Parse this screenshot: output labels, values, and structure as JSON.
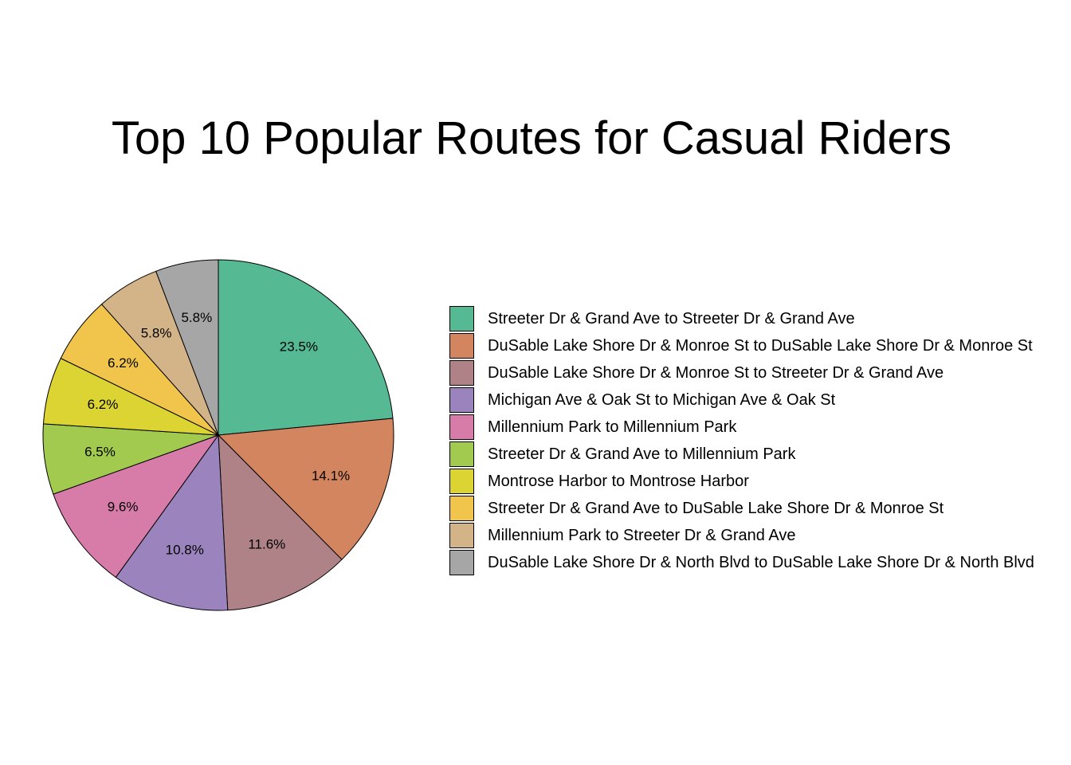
{
  "chart_data": {
    "type": "pie",
    "title": "Top 10 Popular Routes for Casual Riders",
    "slices": [
      {
        "label": "Streeter Dr & Grand Ave to Streeter Dr & Grand Ave",
        "value": 23.5,
        "display": "23.5%",
        "color": "#55b994"
      },
      {
        "label": "DuSable Lake Shore Dr & Monroe St to DuSable Lake Shore Dr & Monroe St",
        "value": 14.1,
        "display": "14.1%",
        "color": "#d2855e"
      },
      {
        "label": "DuSable Lake Shore Dr & Monroe St to Streeter Dr & Grand Ave",
        "value": 11.6,
        "display": "11.6%",
        "color": "#ae8287"
      },
      {
        "label": "Michigan Ave & Oak St to Michigan Ave & Oak St",
        "value": 10.8,
        "display": "10.8%",
        "color": "#9b84be"
      },
      {
        "label": "Millennium Park to Millennium Park",
        "value": 9.6,
        "display": "9.6%",
        "color": "#d77ca8"
      },
      {
        "label": "Streeter Dr & Grand Ave to Millennium Park",
        "value": 6.5,
        "display": "6.5%",
        "color": "#a2ca4f"
      },
      {
        "label": "Montrose Harbor to Montrose Harbor",
        "value": 6.2,
        "display": "6.2%",
        "color": "#dbd433"
      },
      {
        "label": "Streeter Dr & Grand Ave to DuSable Lake Shore Dr & Monroe St",
        "value": 6.2,
        "display": "6.2%",
        "color": "#f1c54c"
      },
      {
        "label": "Millennium Park to Streeter Dr & Grand Ave",
        "value": 5.8,
        "display": "5.8%",
        "color": "#d2b488"
      },
      {
        "label": "DuSable Lake Shore Dr & North Blvd to DuSable Lake Shore Dr & North Blvd",
        "value": 5.8,
        "display": "5.8%",
        "color": "#a6a6a6"
      }
    ],
    "legend_position": "right"
  }
}
